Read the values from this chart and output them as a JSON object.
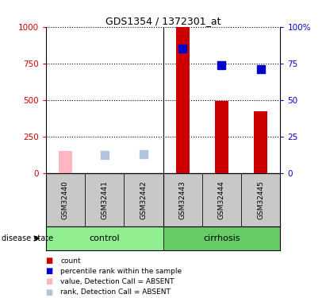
{
  "title": "GDS1354 / 1372301_at",
  "samples": [
    "GSM32440",
    "GSM32441",
    "GSM32442",
    "GSM32443",
    "GSM32444",
    "GSM32445"
  ],
  "count_values": [
    null,
    null,
    null,
    1000,
    490,
    420
  ],
  "rank_values": [
    null,
    null,
    null,
    85,
    74,
    71
  ],
  "absent_value_values": [
    150,
    null,
    null,
    null,
    null,
    null
  ],
  "absent_rank_values": [
    null,
    12,
    13,
    null,
    null,
    null
  ],
  "ylim_left": [
    0,
    1000
  ],
  "ylim_right": [
    0,
    100
  ],
  "yticks_left": [
    0,
    250,
    500,
    750,
    1000
  ],
  "yticks_right": [
    0,
    25,
    50,
    75,
    100
  ],
  "ytick_labels_left": [
    "0",
    "250",
    "500",
    "750",
    "1000"
  ],
  "ytick_labels_right": [
    "0",
    "25",
    "50",
    "75",
    "100%"
  ],
  "control_color": "#90EE90",
  "cirrhosis_color": "#66CC66",
  "sample_bg_color": "#C8C8C8",
  "bar_width": 0.35,
  "count_color": "#CC0000",
  "rank_color": "#0000CC",
  "absent_value_color": "#FFB6C1",
  "absent_rank_color": "#B0C4DE",
  "dot_size": 60,
  "legend_labels": [
    "count",
    "percentile rank within the sample",
    "value, Detection Call = ABSENT",
    "rank, Detection Call = ABSENT"
  ]
}
